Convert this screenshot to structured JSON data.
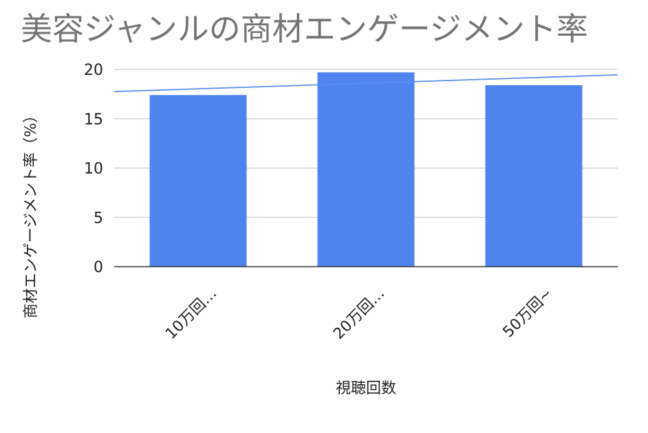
{
  "chart_data": {
    "type": "bar",
    "title": "美容ジャンルの商材エンゲージメント率",
    "xlabel": "視聴回数",
    "ylabel": "商材エンゲージメント率（%）",
    "categories": [
      "10万回…",
      "20万回…",
      "50万回~"
    ],
    "series": [
      {
        "values": [
          17.4,
          19.7,
          18.4
        ],
        "color": "#4f83ee"
      }
    ],
    "trendline": {
      "type": "linear",
      "color": "#5a8ff0",
      "start": 17.75,
      "end": 19.45
    },
    "ylim": [
      0,
      20
    ],
    "yticks": [
      0,
      5,
      10,
      15,
      20
    ],
    "grid": true,
    "legend": "none",
    "colors": {
      "title": "#757575",
      "text": "#222222",
      "grid": "#cccccc",
      "baseline": "#333333",
      "bar": "#4f83ee"
    }
  }
}
